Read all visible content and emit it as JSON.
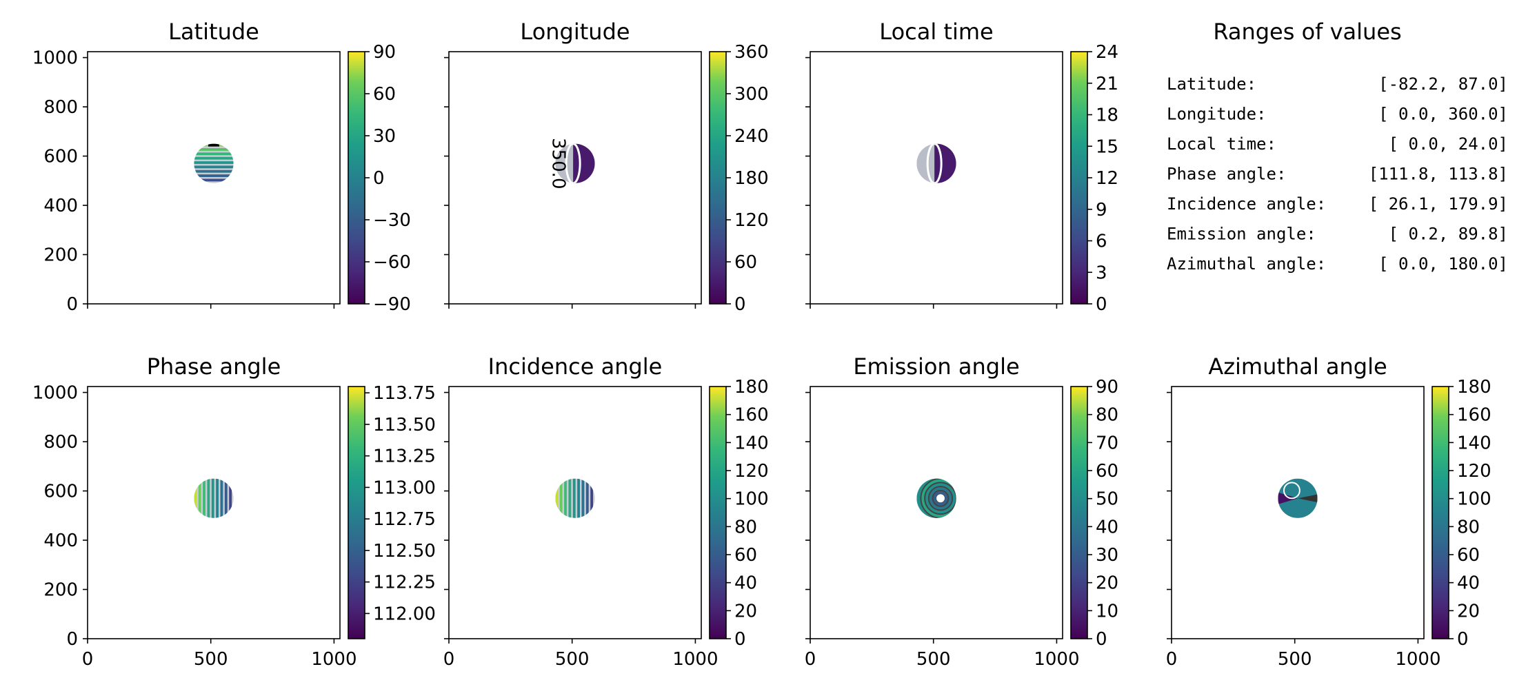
{
  "chart_data": [
    {
      "type": "heatmap",
      "title": "Latitude",
      "xlim": [
        0,
        1024
      ],
      "ylim": [
        0,
        1024
      ],
      "yticks": [
        "0",
        "200",
        "400",
        "600",
        "800",
        "1000"
      ],
      "colorbar": {
        "range": [
          -90,
          90
        ],
        "ticks": [
          "−90",
          "−60",
          "−30",
          "0",
          "30",
          "60",
          "90"
        ]
      },
      "disk": {
        "center": [
          512,
          570
        ],
        "radius": 80,
        "pattern": "horizontal-bands"
      }
    },
    {
      "type": "heatmap",
      "title": "Longitude",
      "xlim": [
        0,
        1024
      ],
      "ylim": [
        0,
        1024
      ],
      "colorbar": {
        "range": [
          0,
          360
        ],
        "ticks": [
          "0",
          "60",
          "120",
          "180",
          "240",
          "300",
          "360"
        ]
      },
      "disk": {
        "center": [
          512,
          570
        ],
        "radius": 80,
        "pattern": "vertical-split"
      },
      "contour_label": "350.0"
    },
    {
      "type": "heatmap",
      "title": "Local time",
      "xlim": [
        0,
        1024
      ],
      "ylim": [
        0,
        1024
      ],
      "colorbar": {
        "range": [
          0,
          24
        ],
        "ticks": [
          "0",
          "3",
          "6",
          "9",
          "12",
          "15",
          "18",
          "21",
          "24"
        ]
      },
      "disk": {
        "center": [
          512,
          570
        ],
        "radius": 80,
        "pattern": "vertical-split"
      }
    },
    {
      "type": "table",
      "title": "Ranges of values",
      "rows": [
        {
          "label": "Latitude:",
          "range": "[-82.2,  87.0]"
        },
        {
          "label": "Longitude:",
          "range": "[  0.0, 360.0]"
        },
        {
          "label": "Local time:",
          "range": "[  0.0,  24.0]"
        },
        {
          "label": "Phase angle:",
          "range": "[111.8, 113.8]"
        },
        {
          "label": "Incidence angle:",
          "range": "[ 26.1, 179.9]"
        },
        {
          "label": "Emission angle:",
          "range": "[  0.2,  89.8]"
        },
        {
          "label": "Azimuthal angle:",
          "range": "[  0.0, 180.0]"
        }
      ]
    },
    {
      "type": "heatmap",
      "title": "Phase angle",
      "xlim": [
        0,
        1024
      ],
      "ylim": [
        0,
        1024
      ],
      "xticks": [
        "0",
        "500",
        "1000"
      ],
      "yticks": [
        "0",
        "200",
        "400",
        "600",
        "800",
        "1000"
      ],
      "colorbar": {
        "range": [
          111.8,
          113.8
        ],
        "ticks": [
          "112.00",
          "112.25",
          "112.50",
          "112.75",
          "113.00",
          "113.25",
          "113.50",
          "113.75"
        ]
      },
      "disk": {
        "center": [
          512,
          570
        ],
        "radius": 80,
        "pattern": "vertical-bands"
      }
    },
    {
      "type": "heatmap",
      "title": "Incidence angle",
      "xlim": [
        0,
        1024
      ],
      "ylim": [
        0,
        1024
      ],
      "xticks": [
        "0",
        "500",
        "1000"
      ],
      "colorbar": {
        "range": [
          0,
          180
        ],
        "ticks": [
          "0",
          "20",
          "40",
          "60",
          "80",
          "100",
          "120",
          "140",
          "160",
          "180"
        ]
      },
      "disk": {
        "center": [
          512,
          570
        ],
        "radius": 80,
        "pattern": "vertical-bands"
      }
    },
    {
      "type": "heatmap",
      "title": "Emission angle",
      "xlim": [
        0,
        1024
      ],
      "ylim": [
        0,
        1024
      ],
      "xticks": [
        "0",
        "500",
        "1000"
      ],
      "colorbar": {
        "range": [
          0,
          90
        ],
        "ticks": [
          "0",
          "10",
          "20",
          "30",
          "40",
          "50",
          "60",
          "70",
          "80",
          "90"
        ]
      },
      "disk": {
        "center": [
          512,
          570
        ],
        "radius": 80,
        "pattern": "concentric"
      }
    },
    {
      "type": "heatmap",
      "title": "Azimuthal angle",
      "xlim": [
        0,
        1024
      ],
      "ylim": [
        0,
        1024
      ],
      "xticks": [
        "0",
        "500",
        "1000"
      ],
      "colorbar": {
        "range": [
          0,
          180
        ],
        "ticks": [
          "0",
          "20",
          "40",
          "60",
          "80",
          "100",
          "120",
          "140",
          "160",
          "180"
        ]
      },
      "disk": {
        "center": [
          512,
          570
        ],
        "radius": 80,
        "pattern": "radial"
      }
    }
  ]
}
